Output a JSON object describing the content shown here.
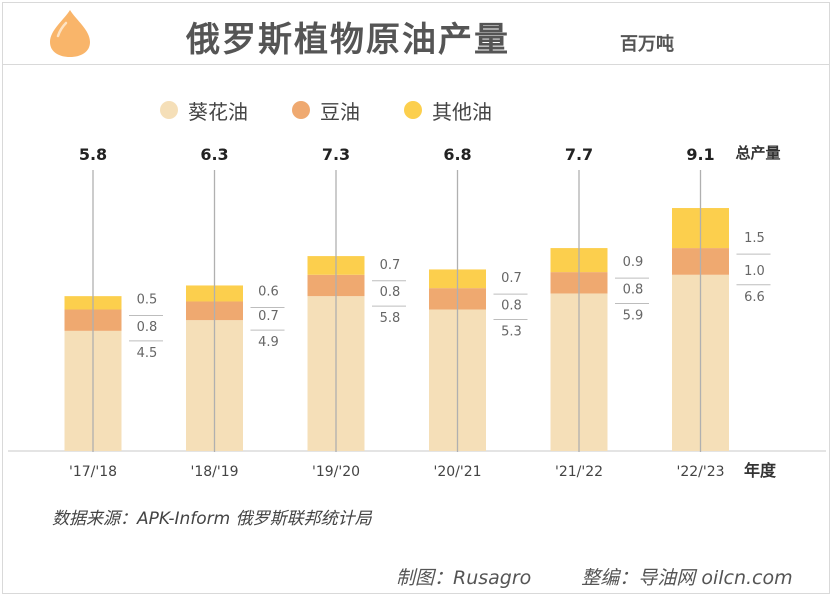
{
  "header": {
    "title": "俄罗斯植物原油产量",
    "unit": "百万吨"
  },
  "colors": {
    "sunflower": "#f5dfb8",
    "soy": "#efa970",
    "other": "#fccf4d",
    "icon": "#f9b56a"
  },
  "legend": [
    {
      "label": "葵花油",
      "color": "#f5dfb8"
    },
    {
      "label": "豆油",
      "color": "#efa970"
    },
    {
      "label": "其他油",
      "color": "#fccf4d"
    }
  ],
  "chart_data": {
    "type": "bar",
    "stacked": true,
    "categories": [
      "'17/'18",
      "'18/'19",
      "'19/'20",
      "'20/'21",
      "'21/'22",
      "'22/'23"
    ],
    "series": [
      {
        "name": "葵花油",
        "values": [
          4.5,
          4.9,
          5.8,
          5.3,
          5.9,
          6.6
        ]
      },
      {
        "name": "豆油",
        "values": [
          0.8,
          0.7,
          0.8,
          0.8,
          0.8,
          1.0
        ]
      },
      {
        "name": "其他油",
        "values": [
          0.5,
          0.6,
          0.7,
          0.7,
          0.9,
          1.5
        ]
      }
    ],
    "totals": [
      5.8,
      6.3,
      7.3,
      6.8,
      7.7,
      9.1
    ],
    "segment_labels": [
      [
        "4.5",
        "0.8",
        "0.5"
      ],
      [
        "4.9",
        "0.7",
        "0.6"
      ],
      [
        "5.8",
        "0.8",
        "0.7"
      ],
      [
        "5.3",
        "0.8",
        "0.7"
      ],
      [
        "5.9",
        "0.8",
        "0.9"
      ],
      [
        "6.6",
        "1.0",
        "1.5"
      ]
    ],
    "total_label": "总产量",
    "xlabel": "年度",
    "ylim": [
      0,
      10
    ],
    "grid": false
  },
  "footer": {
    "source": "数据来源：APK-Inform 俄罗斯联邦统计局",
    "made_by": "制图：Rusagro",
    "edited_by": "整编：导油网 oilcn.com"
  }
}
